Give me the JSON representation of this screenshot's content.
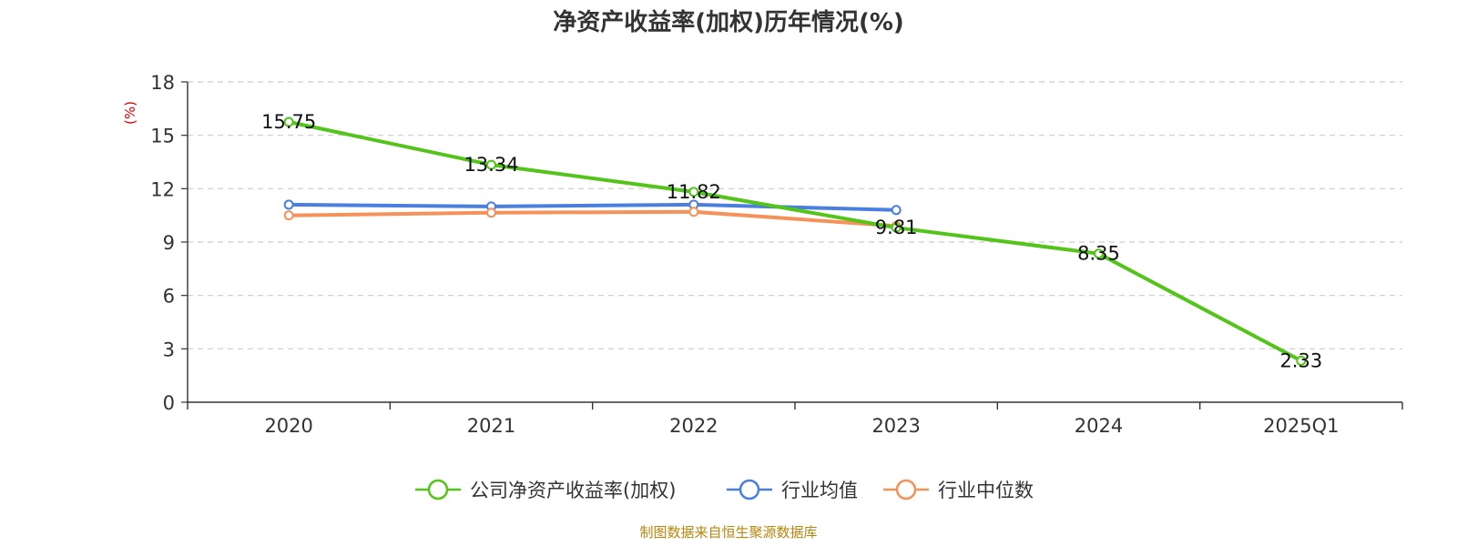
{
  "chart_data": {
    "type": "line",
    "title": "净资产收益率(加权)历年情况(%)",
    "ylabel": "(%)",
    "xlabel": "",
    "categories": [
      "2020",
      "2021",
      "2022",
      "2023",
      "2024",
      "2025Q1"
    ],
    "ylim": [
      0,
      18
    ],
    "yticks": [
      0,
      3,
      6,
      9,
      12,
      15,
      18
    ],
    "grid": true,
    "legend_position": "bottom",
    "series": [
      {
        "name": "公司净资产收益率(加权)",
        "color": "#52c41a",
        "values": [
          15.75,
          13.34,
          11.82,
          9.81,
          8.35,
          2.33
        ],
        "data_labels": [
          "15.75",
          "13.34",
          "11.82",
          "9.81",
          "8.35",
          "2.33"
        ]
      },
      {
        "name": "行业均值",
        "color": "#4a7fe0",
        "values": [
          11.1,
          11.0,
          11.1,
          10.8,
          null,
          null
        ]
      },
      {
        "name": "行业中位数",
        "color": "#f5925a",
        "values": [
          10.5,
          10.65,
          10.7,
          9.9,
          null,
          null
        ]
      }
    ],
    "source": "制图数据来自恒生聚源数据库"
  }
}
